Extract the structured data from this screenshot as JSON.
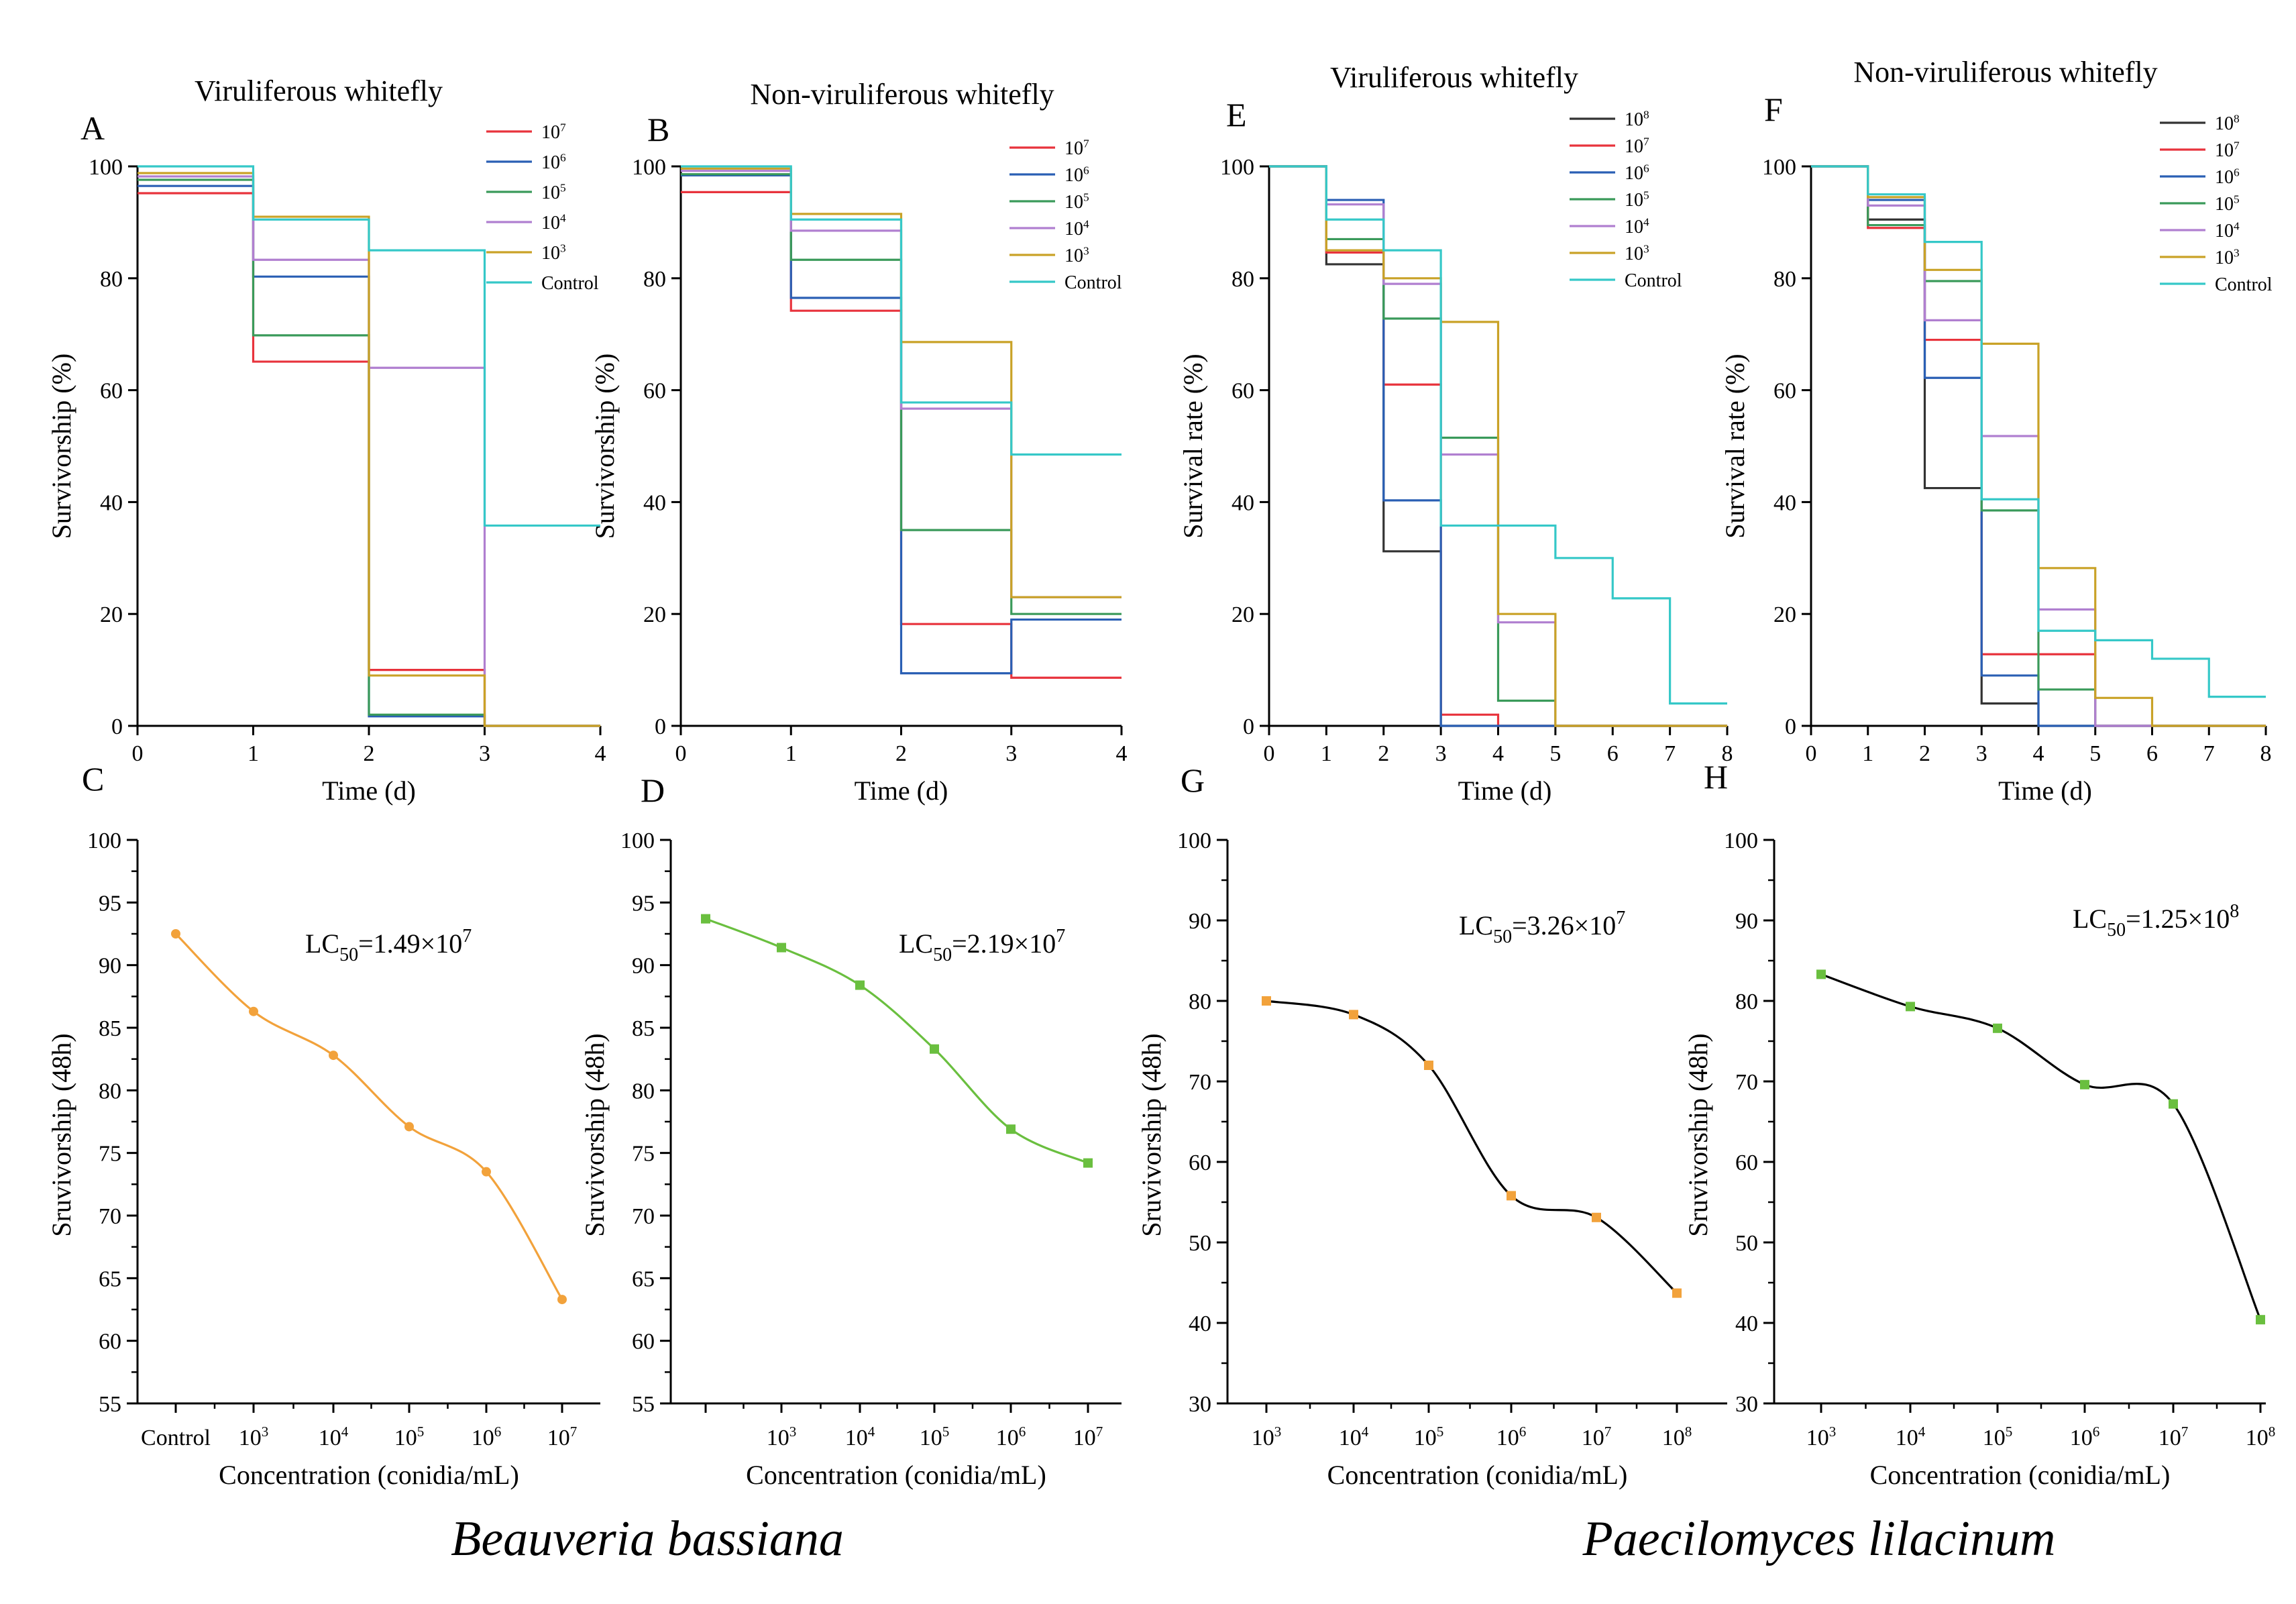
{
  "figure": {
    "group_labels": [
      "Beauveria bassiana",
      "Paecilomyces lilacinum"
    ]
  },
  "chart_data": [
    {
      "id": "A",
      "type": "step-line",
      "panel_letter": "A",
      "title": "Viruliferous whitefly",
      "xlabel": "Time (d)",
      "ylabel": "Survivorship (%)",
      "xlim": [
        0,
        4
      ],
      "ylim": [
        0,
        100
      ],
      "xticks": [
        0,
        1,
        2,
        3,
        4
      ],
      "yticks": [
        0,
        20,
        40,
        60,
        80,
        100
      ],
      "series": [
        {
          "name": "10^7",
          "color": "#e8333c",
          "y": [
            95.2,
            65.1,
            10.0,
            0.0
          ]
        },
        {
          "name": "10^6",
          "color": "#2a5fb4",
          "y": [
            96.5,
            80.3,
            1.7,
            0.0
          ]
        },
        {
          "name": "10^5",
          "color": "#3a9a5a",
          "y": [
            97.6,
            69.8,
            2.0,
            0.0
          ]
        },
        {
          "name": "10^4",
          "color": "#b07fd0",
          "y": [
            98.2,
            83.3,
            64.0,
            0.0
          ]
        },
        {
          "name": "10^3",
          "color": "#c9a227",
          "y": [
            98.8,
            91.0,
            9.0,
            0.0
          ]
        },
        {
          "name": "Control",
          "color": "#35c8c8",
          "y": [
            100.0,
            90.5,
            85.0,
            35.8
          ]
        }
      ]
    },
    {
      "id": "B",
      "type": "step-line",
      "panel_letter": "B",
      "title": "Non-viruliferous whitefly",
      "xlabel": "Time (d)",
      "ylabel": "Survivorship (%)",
      "xlim": [
        0,
        4
      ],
      "ylim": [
        0,
        100
      ],
      "xticks": [
        0,
        1,
        2,
        3,
        4
      ],
      "yticks": [
        0,
        20,
        40,
        60,
        80,
        100
      ],
      "series": [
        {
          "name": "10^7",
          "color": "#e8333c",
          "y": [
            95.4,
            74.2,
            18.2,
            8.6
          ]
        },
        {
          "name": "10^6",
          "color": "#2a5fb4",
          "y": [
            98.4,
            76.5,
            9.4,
            19.0
          ]
        },
        {
          "name": "10^5",
          "color": "#3a9a5a",
          "y": [
            98.6,
            83.3,
            35.0,
            20.0
          ]
        },
        {
          "name": "10^4",
          "color": "#b07fd0",
          "y": [
            99.2,
            88.5,
            56.7,
            23.0
          ]
        },
        {
          "name": "10^3",
          "color": "#c9a227",
          "y": [
            99.6,
            91.5,
            68.6,
            23.0
          ]
        },
        {
          "name": "Control",
          "color": "#35c8c8",
          "y": [
            100.0,
            90.5,
            57.8,
            48.5
          ]
        }
      ]
    },
    {
      "id": "C",
      "type": "line",
      "panel_letter": "C",
      "xlabel": "Concentration (conidia/mL)",
      "ylabel": "Sruvivorship (48h)",
      "categories": [
        "Control",
        "10^3",
        "10^4",
        "10^5",
        "10^6",
        "10^7"
      ],
      "values": [
        92.5,
        86.3,
        82.8,
        77.1,
        73.5,
        63.3
      ],
      "ylim": [
        55,
        100
      ],
      "yticks": [
        55,
        60,
        65,
        70,
        75,
        80,
        85,
        90,
        95,
        100
      ],
      "color": "#f2a23b",
      "marker": "circle",
      "annotation": {
        "prefix": "LC",
        "sub": "50",
        "mantissa": "=1.49×10",
        "exp": "7"
      }
    },
    {
      "id": "D",
      "type": "line",
      "panel_letter": "D",
      "xlabel": "Concentration (conidia/mL)",
      "ylabel": "Sruvivorship (48h)",
      "categories": [
        "",
        "10^3",
        "10^4",
        "10^5",
        "10^6",
        "10^7"
      ],
      "values": [
        93.7,
        91.4,
        88.4,
        83.3,
        76.9,
        74.2
      ],
      "ylim": [
        55,
        100
      ],
      "yticks": [
        55,
        60,
        65,
        70,
        75,
        80,
        85,
        90,
        95,
        100
      ],
      "color": "#6abf3f",
      "marker": "square",
      "annotation": {
        "prefix": "LC",
        "sub": "50",
        "mantissa": "=2.19×10",
        "exp": "7"
      }
    },
    {
      "id": "E",
      "type": "step-line",
      "panel_letter": "E",
      "title": "Viruliferous whitefly",
      "xlabel": "Time (d)",
      "ylabel": "Survival rate (%)",
      "xlim": [
        0,
        8
      ],
      "ylim": [
        0,
        100
      ],
      "xticks": [
        0,
        1,
        2,
        3,
        4,
        5,
        6,
        7,
        8
      ],
      "yticks": [
        0,
        20,
        40,
        60,
        80,
        100
      ],
      "series": [
        {
          "name": "10^8",
          "color": "#333333",
          "y": [
            100,
            82.5,
            31.2,
            0,
            0,
            0,
            0,
            0
          ]
        },
        {
          "name": "10^7",
          "color": "#e8333c",
          "y": [
            100,
            84.6,
            61.0,
            2.0,
            0,
            0,
            0,
            0
          ]
        },
        {
          "name": "10^6",
          "color": "#2a5fb4",
          "y": [
            100,
            94.0,
            40.3,
            0,
            0,
            0,
            0,
            0
          ]
        },
        {
          "name": "10^5",
          "color": "#3a9a5a",
          "y": [
            100,
            87.0,
            72.8,
            51.5,
            4.5,
            0,
            0,
            0
          ]
        },
        {
          "name": "10^4",
          "color": "#b07fd0",
          "y": [
            100,
            93.2,
            79.0,
            48.5,
            18.5,
            0,
            0,
            0
          ]
        },
        {
          "name": "10^3",
          "color": "#c9a227",
          "y": [
            100,
            85.0,
            80.0,
            72.2,
            20.0,
            0,
            0,
            0
          ]
        },
        {
          "name": "Control",
          "color": "#35c8c8",
          "y": [
            100,
            90.5,
            85.0,
            35.8,
            35.8,
            30.0,
            22.8,
            4.0
          ]
        }
      ]
    },
    {
      "id": "F",
      "type": "step-line",
      "panel_letter": "F",
      "title": "Non-viruliferous whitefly",
      "xlabel": "Time (d)",
      "ylabel": "Survival rate (%)",
      "xlim": [
        0,
        8
      ],
      "ylim": [
        0,
        100
      ],
      "xticks": [
        0,
        1,
        2,
        3,
        4,
        5,
        6,
        7,
        8
      ],
      "yticks": [
        0,
        20,
        40,
        60,
        80,
        100
      ],
      "series": [
        {
          "name": "10^8",
          "color": "#333333",
          "y": [
            100,
            90.5,
            42.5,
            4.0,
            0,
            0,
            0,
            0
          ]
        },
        {
          "name": "10^7",
          "color": "#e8333c",
          "y": [
            100,
            89.0,
            69.0,
            12.8,
            12.8,
            0,
            0,
            0
          ]
        },
        {
          "name": "10^6",
          "color": "#2a5fb4",
          "y": [
            100,
            94.0,
            62.2,
            9.0,
            0,
            0,
            0,
            0
          ]
        },
        {
          "name": "10^5",
          "color": "#3a9a5a",
          "y": [
            100,
            89.5,
            79.5,
            38.5,
            6.5,
            0,
            0,
            0
          ]
        },
        {
          "name": "10^4",
          "color": "#b07fd0",
          "y": [
            100,
            93.0,
            72.5,
            51.8,
            20.8,
            0,
            0,
            0
          ]
        },
        {
          "name": "10^3",
          "color": "#c9a227",
          "y": [
            100,
            94.5,
            81.5,
            68.3,
            28.2,
            5.0,
            0,
            0
          ]
        },
        {
          "name": "Control",
          "color": "#35c8c8",
          "y": [
            100,
            95.0,
            86.5,
            40.5,
            17.0,
            15.3,
            12.0,
            5.2
          ]
        }
      ]
    },
    {
      "id": "G",
      "type": "line",
      "panel_letter": "G",
      "xlabel": "Concentration (conidia/mL)",
      "ylabel": "Sruvivorship (48h)",
      "categories": [
        "10^3",
        "10^4",
        "10^5",
        "10^6",
        "10^7",
        "10^8"
      ],
      "values": [
        80.0,
        78.3,
        72.0,
        55.8,
        53.1,
        43.7
      ],
      "ylim": [
        30,
        100
      ],
      "yticks": [
        30,
        40,
        50,
        60,
        70,
        80,
        90,
        100
      ],
      "color": "#000000",
      "marker_color": "#f2a23b",
      "marker": "square",
      "annotation": {
        "prefix": "LC",
        "sub": "50",
        "mantissa": "=3.26×10",
        "exp": "7"
      }
    },
    {
      "id": "H",
      "type": "line",
      "panel_letter": "H",
      "xlabel": "Concentration (conidia/mL)",
      "ylabel": "Sruvivorship (48h)",
      "categories": [
        "10^3",
        "10^4",
        "10^5",
        "10^6",
        "10^7",
        "10^8"
      ],
      "values": [
        83.3,
        79.3,
        76.6,
        69.6,
        67.2,
        40.4
      ],
      "ylim": [
        30,
        100
      ],
      "yticks": [
        30,
        40,
        50,
        60,
        70,
        80,
        90,
        100
      ],
      "color": "#000000",
      "marker_color": "#6abf3f",
      "marker": "square",
      "annotation": {
        "prefix": "LC",
        "sub": "50",
        "mantissa": "=1.25×10",
        "exp": "8"
      }
    }
  ]
}
